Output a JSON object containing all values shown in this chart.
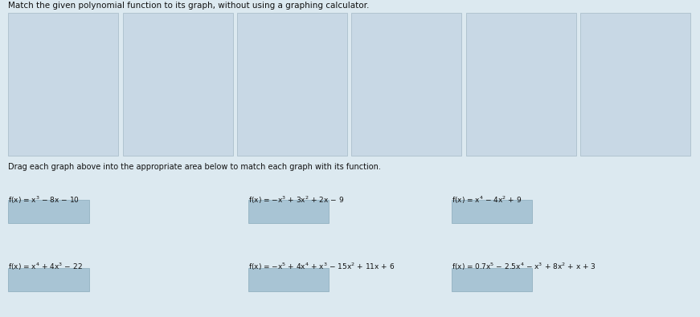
{
  "title": "Match the given polynomial function to its graph, without using a graphing calculator.",
  "drag_instruction": "Drag each graph above into the appropriate area below to match each graph with its function.",
  "row1_labels": [
    "f(x) = x³ − 8x − 10",
    "f(x) = −x³ + 3x² + 2x − 9",
    "f(x) = x⁴ − 4x² + 9"
  ],
  "row2_labels": [
    "f(x) = x⁴ + 4x³ − 22",
    "f(x) = −x⁵ + 4x⁴ + x³ − 15x² + 11x + 6",
    "f(x) = 0.7x⁵ − 2.5x⁴ − x³ + 8x² + x + 3"
  ],
  "fig_bg": "#dce9f0",
  "card_bg": "#c8d8e5",
  "card_edge": "#b0c4d0",
  "graph_bg": "#ccd8e2",
  "drop_box_color": "#a8c4d4",
  "drop_box_edge": "#8aaabb",
  "line_color": "#333333",
  "axis_color": "#555555",
  "grid_color": "#bbbbbb",
  "title_color": "#111111",
  "text_color": "#111111"
}
